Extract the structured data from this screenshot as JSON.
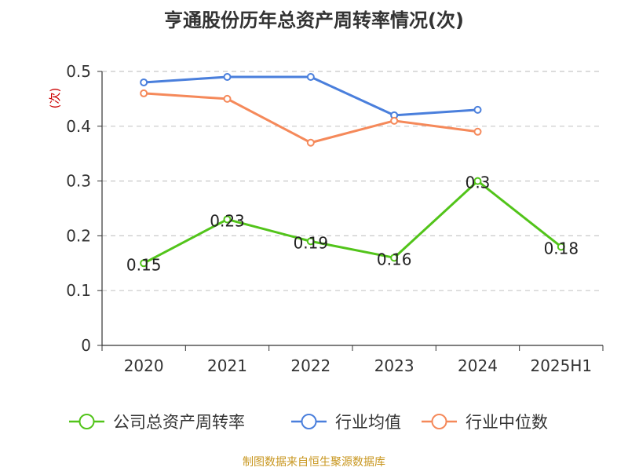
{
  "chart_data": {
    "type": "line",
    "title": "亨通股份历年总资产周转率情况(次)",
    "ylabel": "(次)",
    "xlabel": "",
    "categories": [
      "2020",
      "2021",
      "2022",
      "2023",
      "2024",
      "2025H1"
    ],
    "ylim": [
      0,
      0.5
    ],
    "yticks": [
      "0",
      "0.1",
      "0.2",
      "0.3",
      "0.4",
      "0.5"
    ],
    "grid": true,
    "legend_position": "bottom",
    "series": [
      {
        "name": "公司总资产周转率",
        "color": "#52c41a",
        "values": [
          0.15,
          0.23,
          0.19,
          0.16,
          0.3,
          0.18
        ],
        "labels": [
          "0.15",
          "0.23",
          "0.19",
          "0.16",
          "0.3",
          "0.18"
        ]
      },
      {
        "name": "行业均值",
        "color": "#4a7fdc",
        "values": [
          0.48,
          0.49,
          0.49,
          0.42,
          0.43,
          null
        ]
      },
      {
        "name": "行业中位数",
        "color": "#f5895a",
        "values": [
          0.46,
          0.45,
          0.37,
          0.41,
          0.39,
          null
        ]
      }
    ]
  },
  "footer": "制图数据来自恒生聚源数据库"
}
